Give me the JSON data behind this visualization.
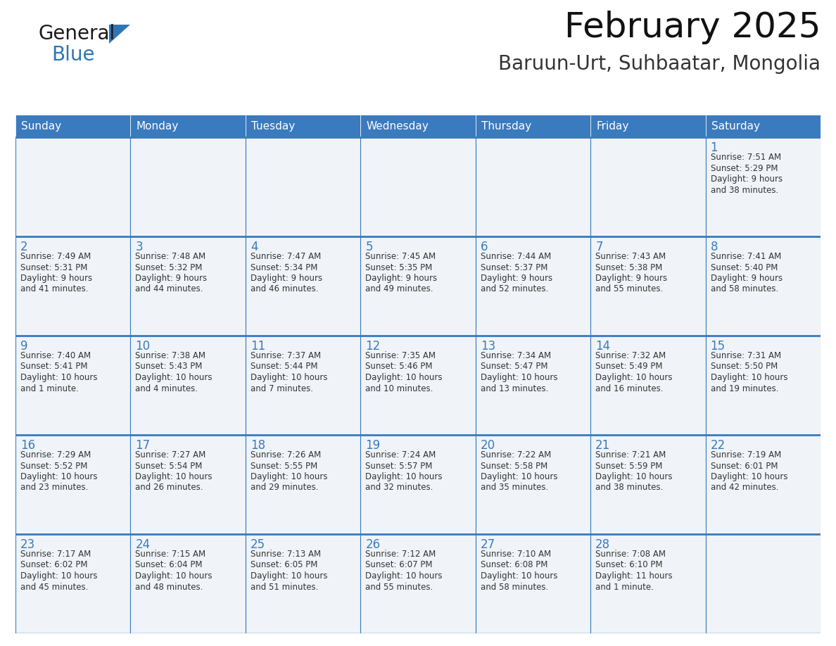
{
  "title": "February 2025",
  "subtitle": "Baruun-Urt, Suhbaatar, Mongolia",
  "header_color": "#3a7abf",
  "header_text_color": "#ffffff",
  "cell_bg_color": "#f0f4f8",
  "cell_bg_white": "#ffffff",
  "cell_border_color": "#3a7abf",
  "day_number_color": "#3a7abf",
  "text_color": "#333333",
  "days_of_week": [
    "Sunday",
    "Monday",
    "Tuesday",
    "Wednesday",
    "Thursday",
    "Friday",
    "Saturday"
  ],
  "logo_text_general": "General",
  "logo_text_blue": "Blue",
  "logo_general_color": "#1a1a1a",
  "logo_blue_color": "#2e75b6",
  "calendar_data": [
    [
      {
        "day": null,
        "sunrise": null,
        "sunset": null,
        "daylight": null
      },
      {
        "day": null,
        "sunrise": null,
        "sunset": null,
        "daylight": null
      },
      {
        "day": null,
        "sunrise": null,
        "sunset": null,
        "daylight": null
      },
      {
        "day": null,
        "sunrise": null,
        "sunset": null,
        "daylight": null
      },
      {
        "day": null,
        "sunrise": null,
        "sunset": null,
        "daylight": null
      },
      {
        "day": null,
        "sunrise": null,
        "sunset": null,
        "daylight": null
      },
      {
        "day": 1,
        "sunrise": "7:51 AM",
        "sunset": "5:29 PM",
        "daylight": "9 hours\nand 38 minutes."
      }
    ],
    [
      {
        "day": 2,
        "sunrise": "7:49 AM",
        "sunset": "5:31 PM",
        "daylight": "9 hours\nand 41 minutes."
      },
      {
        "day": 3,
        "sunrise": "7:48 AM",
        "sunset": "5:32 PM",
        "daylight": "9 hours\nand 44 minutes."
      },
      {
        "day": 4,
        "sunrise": "7:47 AM",
        "sunset": "5:34 PM",
        "daylight": "9 hours\nand 46 minutes."
      },
      {
        "day": 5,
        "sunrise": "7:45 AM",
        "sunset": "5:35 PM",
        "daylight": "9 hours\nand 49 minutes."
      },
      {
        "day": 6,
        "sunrise": "7:44 AM",
        "sunset": "5:37 PM",
        "daylight": "9 hours\nand 52 minutes."
      },
      {
        "day": 7,
        "sunrise": "7:43 AM",
        "sunset": "5:38 PM",
        "daylight": "9 hours\nand 55 minutes."
      },
      {
        "day": 8,
        "sunrise": "7:41 AM",
        "sunset": "5:40 PM",
        "daylight": "9 hours\nand 58 minutes."
      }
    ],
    [
      {
        "day": 9,
        "sunrise": "7:40 AM",
        "sunset": "5:41 PM",
        "daylight": "10 hours\nand 1 minute."
      },
      {
        "day": 10,
        "sunrise": "7:38 AM",
        "sunset": "5:43 PM",
        "daylight": "10 hours\nand 4 minutes."
      },
      {
        "day": 11,
        "sunrise": "7:37 AM",
        "sunset": "5:44 PM",
        "daylight": "10 hours\nand 7 minutes."
      },
      {
        "day": 12,
        "sunrise": "7:35 AM",
        "sunset": "5:46 PM",
        "daylight": "10 hours\nand 10 minutes."
      },
      {
        "day": 13,
        "sunrise": "7:34 AM",
        "sunset": "5:47 PM",
        "daylight": "10 hours\nand 13 minutes."
      },
      {
        "day": 14,
        "sunrise": "7:32 AM",
        "sunset": "5:49 PM",
        "daylight": "10 hours\nand 16 minutes."
      },
      {
        "day": 15,
        "sunrise": "7:31 AM",
        "sunset": "5:50 PM",
        "daylight": "10 hours\nand 19 minutes."
      }
    ],
    [
      {
        "day": 16,
        "sunrise": "7:29 AM",
        "sunset": "5:52 PM",
        "daylight": "10 hours\nand 23 minutes."
      },
      {
        "day": 17,
        "sunrise": "7:27 AM",
        "sunset": "5:54 PM",
        "daylight": "10 hours\nand 26 minutes."
      },
      {
        "day": 18,
        "sunrise": "7:26 AM",
        "sunset": "5:55 PM",
        "daylight": "10 hours\nand 29 minutes."
      },
      {
        "day": 19,
        "sunrise": "7:24 AM",
        "sunset": "5:57 PM",
        "daylight": "10 hours\nand 32 minutes."
      },
      {
        "day": 20,
        "sunrise": "7:22 AM",
        "sunset": "5:58 PM",
        "daylight": "10 hours\nand 35 minutes."
      },
      {
        "day": 21,
        "sunrise": "7:21 AM",
        "sunset": "5:59 PM",
        "daylight": "10 hours\nand 38 minutes."
      },
      {
        "day": 22,
        "sunrise": "7:19 AM",
        "sunset": "6:01 PM",
        "daylight": "10 hours\nand 42 minutes."
      }
    ],
    [
      {
        "day": 23,
        "sunrise": "7:17 AM",
        "sunset": "6:02 PM",
        "daylight": "10 hours\nand 45 minutes."
      },
      {
        "day": 24,
        "sunrise": "7:15 AM",
        "sunset": "6:04 PM",
        "daylight": "10 hours\nand 48 minutes."
      },
      {
        "day": 25,
        "sunrise": "7:13 AM",
        "sunset": "6:05 PM",
        "daylight": "10 hours\nand 51 minutes."
      },
      {
        "day": 26,
        "sunrise": "7:12 AM",
        "sunset": "6:07 PM",
        "daylight": "10 hours\nand 55 minutes."
      },
      {
        "day": 27,
        "sunrise": "7:10 AM",
        "sunset": "6:08 PM",
        "daylight": "10 hours\nand 58 minutes."
      },
      {
        "day": 28,
        "sunrise": "7:08 AM",
        "sunset": "6:10 PM",
        "daylight": "11 hours\nand 1 minute."
      },
      {
        "day": null,
        "sunrise": null,
        "sunset": null,
        "daylight": null
      }
    ]
  ]
}
